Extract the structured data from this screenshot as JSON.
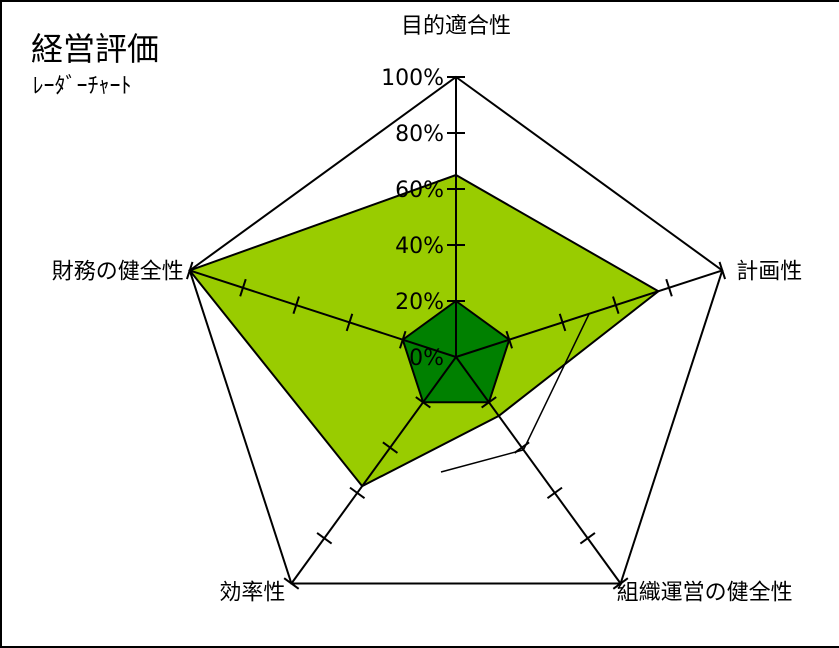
{
  "title": "経営評価",
  "subtitle": "ﾚｰﾀﾞｰﾁｬｰﾄ",
  "chart_data": {
    "type": "radar",
    "axes": [
      "目的適合性",
      "計画性",
      "組織運営の健全性",
      "効率性",
      "財務の健全性"
    ],
    "tick_labels": [
      "0%",
      "20%",
      "40%",
      "60%",
      "80%",
      "100%"
    ],
    "range": [
      0,
      100
    ],
    "series": [
      {
        "values": [
          65,
          76,
          26,
          57,
          100
        ],
        "color": "#99cc00"
      },
      {
        "values": [
          20,
          20,
          20,
          20,
          20
        ],
        "color": "#008000"
      }
    ],
    "extra_polygon": {
      "values": [
        null,
        50,
        41,
        null,
        null
      ]
    }
  }
}
